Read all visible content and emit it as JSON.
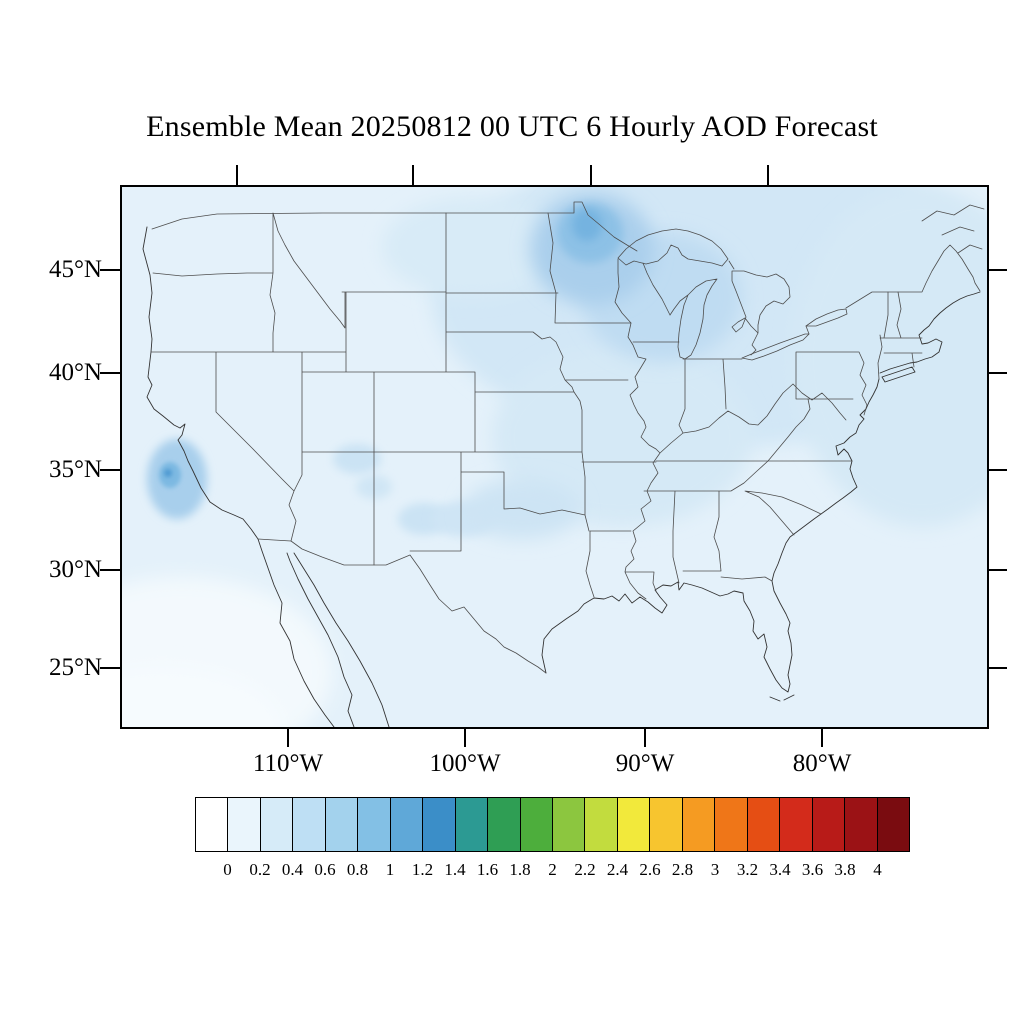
{
  "title": "Ensemble Mean 20250812 00 UTC 6 Hourly AOD Forecast",
  "axes": {
    "lat_ticks": [
      "45°N",
      "40°N",
      "35°N",
      "30°N",
      "25°N"
    ],
    "lon_ticks": [
      "110°W",
      "100°W",
      "90°W",
      "80°W"
    ]
  },
  "colorbar": {
    "tick_labels": [
      "0",
      "0.2",
      "0.4",
      "0.6",
      "0.8",
      "1",
      "1.2",
      "1.4",
      "1.6",
      "1.8",
      "2",
      "2.2",
      "2.4",
      "2.6",
      "2.8",
      "3",
      "3.2",
      "3.4",
      "3.6",
      "3.8",
      "4"
    ],
    "colors": [
      "#FFFFFF",
      "#EAF5FC",
      "#D6EBF8",
      "#BEDFF4",
      "#A3D2ED",
      "#83C0E5",
      "#5FA8D8",
      "#3B8EC8",
      "#2C9A93",
      "#2F9E54",
      "#4DAE3C",
      "#8CC63F",
      "#C2DC3E",
      "#F2E93B",
      "#F7C52F",
      "#F59B22",
      "#EF7618",
      "#E54E14",
      "#D32B1B",
      "#B81B18",
      "#9B1215",
      "#7A0C10"
    ]
  },
  "map": {
    "background_color": "#E4F1FA",
    "line_color": "#4D4D4D",
    "region": "Contiguous United States with southern Canada and northern Mexico"
  },
  "chart_data": {
    "type": "heatmap",
    "title": "Ensemble Mean 20250812 00 UTC 6 Hourly AOD Forecast",
    "variable": "Aerosol Optical Depth (AOD), ensemble mean forecast",
    "init_date": "20250812",
    "init_time": "00 UTC",
    "cadence": "6 Hourly",
    "lat_tick_values_N": [
      45,
      40,
      35,
      30,
      25
    ],
    "lon_tick_values_W": [
      110,
      100,
      90,
      80
    ],
    "colorbar_levels": [
      0,
      0.2,
      0.4,
      0.6,
      0.8,
      1,
      1.2,
      1.4,
      1.6,
      1.8,
      2,
      2.2,
      2.4,
      2.6,
      2.8,
      3,
      3.2,
      3.4,
      3.6,
      3.8,
      4
    ],
    "colorbar_range_shown": [
      0,
      4
    ],
    "legend_position": "bottom horizontal",
    "grid": false,
    "field_observations": [
      {
        "region": "northern Minnesota / western Great Lakes / adjacent Ontario",
        "approx_aod": "0.3-0.6 (strongest maximum on map)"
      },
      {
        "region": "upper Midwest, Wisconsin and Great Lakes area",
        "approx_aod": "0.2-0.4"
      },
      {
        "region": "central California coast near San Francisco Bay",
        "approx_aod": "0.3-0.7 (small localized maximum)"
      },
      {
        "region": "Four Corners, New Mexico, Texas panhandle and Oklahoma",
        "approx_aod": "0.1-0.3 scattered patches"
      },
      {
        "region": "Northeast US and eastern Canada",
        "approx_aod": "0.1-0.2 broad wash"
      },
      {
        "region": "most of the remaining CONUS and Gulf of Mexico",
        "approx_aod": "0.05-0.15 background"
      },
      {
        "region": "Pacific Ocean southwest corner off Baja California",
        "approx_aod": "< 0.05 (near white)"
      }
    ]
  }
}
